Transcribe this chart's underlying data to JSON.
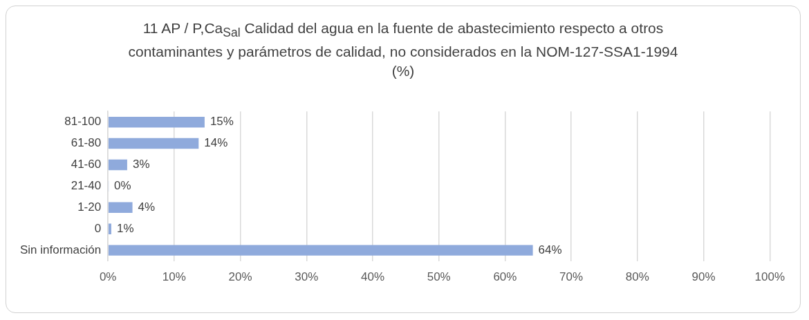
{
  "chart_data": {
    "type": "bar",
    "orientation": "horizontal",
    "title": "11 AP / P,Ca$_{Sal}$  Calidad del agua en la fuente de abastecimiento respecto a otros contaminantes y parámetros de calidad, no considerados en la NOM-127-SSA1-1994 (%)",
    "categories": [
      "81-100",
      "61-80",
      "41-60",
      "21-40",
      "1-20",
      "0",
      "Sin información"
    ],
    "values": [
      14.6,
      13.7,
      2.9,
      0.1,
      3.7,
      0.5,
      64.2
    ],
    "value_labels": [
      "15%",
      "14%",
      "3%",
      "0%",
      "4%",
      "1%",
      "64%"
    ],
    "color": "#8faadc",
    "xlim": [
      0,
      100
    ],
    "xticks": [
      {
        "value": 0,
        "label": "0%"
      },
      {
        "value": 10,
        "label": "10%"
      },
      {
        "value": 20,
        "label": "20%"
      },
      {
        "value": 30,
        "label": "30%"
      },
      {
        "value": 40,
        "label": "40%"
      },
      {
        "value": 50,
        "label": "50%"
      },
      {
        "value": 60,
        "label": "60%"
      },
      {
        "value": 70,
        "label": "70%"
      },
      {
        "value": 80,
        "label": "80%"
      },
      {
        "value": 90,
        "label": "90%"
      },
      {
        "value": 100,
        "label": "100%"
      }
    ],
    "grid": "x",
    "legend": false
  }
}
